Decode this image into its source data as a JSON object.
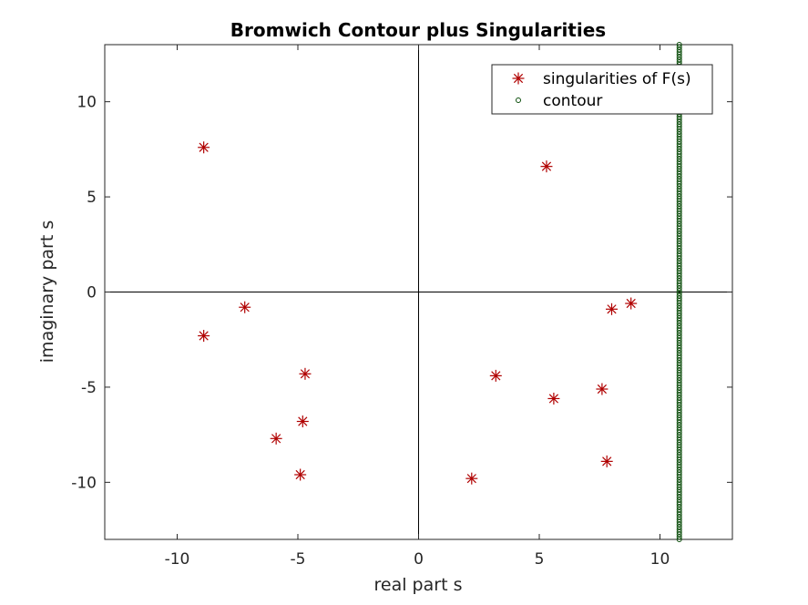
{
  "chart_data": {
    "type": "scatter",
    "title": "Bromwich Contour plus Singularities",
    "xlabel": "real part s",
    "ylabel": "imaginary part s",
    "xlim": [
      -13,
      13
    ],
    "ylim": [
      -13,
      13
    ],
    "xticks": [
      -10,
      -5,
      0,
      5,
      10
    ],
    "yticks": [
      -10,
      -5,
      0,
      5,
      10
    ],
    "xtick_labels": [
      "-10",
      "-5",
      "0",
      "5",
      "10"
    ],
    "ytick_labels": [
      "-10",
      "-5",
      "0",
      "5",
      "10"
    ],
    "grid": false,
    "legend_position": "top-right",
    "reference_lines": {
      "x_zero": true,
      "y_zero": true
    },
    "series": [
      {
        "name": "singularities of F(s)",
        "marker": "asterisk",
        "color": "#b00000",
        "points": [
          {
            "x": -8.9,
            "y": 7.6
          },
          {
            "x": -7.2,
            "y": -0.8
          },
          {
            "x": -8.9,
            "y": -2.3
          },
          {
            "x": -4.7,
            "y": -4.3
          },
          {
            "x": -4.8,
            "y": -6.8
          },
          {
            "x": -5.9,
            "y": -7.7
          },
          {
            "x": -4.9,
            "y": -9.6
          },
          {
            "x": 5.3,
            "y": 6.6
          },
          {
            "x": 8.0,
            "y": -0.9
          },
          {
            "x": 8.8,
            "y": -0.6
          },
          {
            "x": 3.2,
            "y": -4.4
          },
          {
            "x": 5.6,
            "y": -5.6
          },
          {
            "x": 7.6,
            "y": -5.1
          },
          {
            "x": 7.8,
            "y": -8.9
          },
          {
            "x": 2.2,
            "y": -9.8
          }
        ]
      },
      {
        "name": "contour",
        "marker": "circle",
        "color": "#0b4d0b",
        "x_constant": 10.8,
        "y_range": [
          -13,
          13
        ],
        "num_points": 200
      }
    ]
  }
}
